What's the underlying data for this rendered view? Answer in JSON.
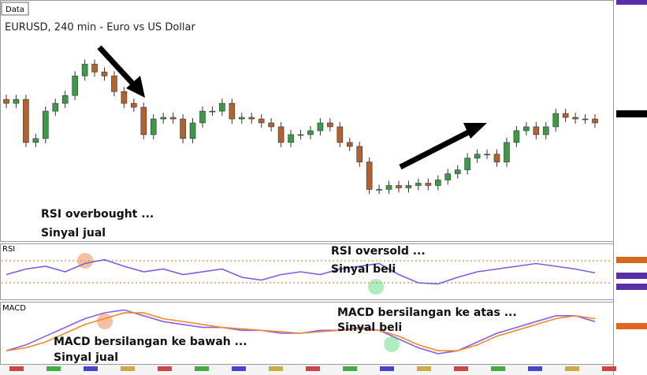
{
  "chart_data": [
    {
      "type": "candlestick",
      "label": "Data",
      "title": "EURUSD, 240 min - Euro vs US Dollar",
      "annotations": [
        "RSI overbought ...",
        "Sinyal jual"
      ],
      "up_color": "#3a9a46",
      "down_color": "#b8602c",
      "ylim": [
        0,
        305
      ],
      "open": [
        180,
        175,
        180,
        125,
        130,
        165,
        175,
        185,
        210,
        225,
        215,
        210,
        190,
        175,
        170,
        135,
        155,
        157,
        155,
        130,
        150,
        165,
        165,
        175,
        155,
        157,
        155,
        150,
        145,
        125,
        135,
        135,
        140,
        150,
        145,
        125,
        120,
        100,
        65,
        65,
        70,
        67,
        70,
        73,
        70,
        77,
        85,
        90,
        105,
        110,
        110,
        100,
        125,
        140,
        145,
        135,
        145,
        162,
        157,
        155,
        155
      ],
      "high": [
        186,
        186,
        186,
        136,
        171,
        181,
        191,
        216,
        231,
        231,
        221,
        216,
        196,
        181,
        176,
        161,
        163,
        163,
        161,
        156,
        171,
        171,
        181,
        181,
        163,
        163,
        161,
        156,
        151,
        141,
        141,
        146,
        156,
        156,
        151,
        131,
        126,
        106,
        71,
        76,
        76,
        76,
        79,
        79,
        83,
        91,
        96,
        111,
        116,
        116,
        116,
        131,
        146,
        151,
        151,
        151,
        168,
        168,
        163,
        161,
        161
      ],
      "low": [
        169,
        169,
        119,
        119,
        124,
        159,
        169,
        179,
        204,
        209,
        204,
        184,
        169,
        164,
        129,
        129,
        149,
        149,
        124,
        124,
        144,
        159,
        159,
        149,
        149,
        149,
        144,
        139,
        119,
        119,
        129,
        129,
        134,
        139,
        119,
        114,
        94,
        59,
        59,
        59,
        61,
        61,
        64,
        64,
        64,
        71,
        79,
        84,
        99,
        104,
        94,
        94,
        119,
        134,
        129,
        129,
        139,
        151,
        149,
        149,
        144
      ],
      "close": [
        175,
        180,
        125,
        130,
        165,
        175,
        185,
        210,
        225,
        215,
        210,
        190,
        175,
        170,
        135,
        155,
        157,
        155,
        130,
        150,
        165,
        165,
        175,
        155,
        157,
        155,
        150,
        145,
        125,
        135,
        135,
        140,
        150,
        145,
        125,
        120,
        100,
        65,
        65,
        70,
        67,
        70,
        73,
        70,
        77,
        85,
        90,
        105,
        110,
        110,
        100,
        125,
        140,
        145,
        135,
        145,
        162,
        157,
        155,
        155,
        150
      ]
    },
    {
      "type": "line",
      "label": "RSI",
      "annotations": [
        "RSI oversold ...",
        "Sinyal beli"
      ],
      "ylim": [
        0,
        100
      ],
      "levels": [
        70,
        30
      ],
      "level_color": "#e08a3c",
      "series": [
        {
          "color": "#7b5de8",
          "values": [
            45,
            55,
            60,
            50,
            65,
            72,
            60,
            50,
            55,
            45,
            50,
            55,
            40,
            35,
            45,
            50,
            45,
            55,
            60,
            65,
            45,
            30,
            28,
            40,
            50,
            55,
            60,
            65,
            60,
            55,
            48
          ]
        }
      ]
    },
    {
      "type": "line",
      "label": "MACD",
      "annotations": [
        "MACD bersilangan ke bawah ...",
        "Sinyal jual",
        "MACD bersilangan ke atas ...",
        "Sinyal beli"
      ],
      "ylim": [
        -10,
        10
      ],
      "series": [
        {
          "color": "#8a5de8",
          "values": [
            -6,
            -4,
            -1,
            2,
            5,
            7,
            8,
            6,
            4,
            3,
            2,
            2,
            1,
            1,
            0,
            0,
            1,
            1,
            2,
            1,
            -2,
            -5,
            -7,
            -6,
            -3,
            0,
            2,
            4,
            6,
            6,
            4
          ]
        },
        {
          "color": "#f08a2c",
          "values": [
            -6,
            -5,
            -3,
            0,
            3,
            5,
            7,
            7,
            5,
            4,
            3,
            2,
            1.5,
            1,
            0.5,
            0,
            0.5,
            1,
            1.5,
            1,
            -1,
            -4,
            -6,
            -6,
            -4,
            -1,
            1,
            3,
            5,
            6,
            5
          ]
        }
      ]
    }
  ]
}
